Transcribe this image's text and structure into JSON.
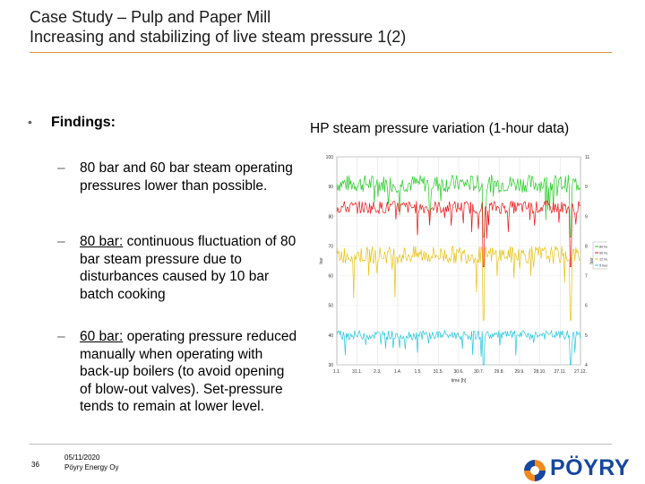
{
  "slide": {
    "title_line1": "Case Study – Pulp and Paper Mill",
    "title_line2": "Increasing and stabilizing of live steam pressure 1(2)",
    "accent_color": "#e08a40"
  },
  "findings": {
    "bullet": "•",
    "label": "Findings:",
    "items": [
      {
        "dash": "–",
        "text": "80 bar and 60 bar steam operating pressures lower than possible."
      },
      {
        "dash": "–",
        "lead": "80 bar:",
        "text": " continuous fluctuation of 80 bar steam pressure due to disturbances caused by 10 bar batch cooking"
      },
      {
        "dash": "–",
        "lead": "60 bar:",
        "text": " operating pressure reduced manually when operating with back-up boilers (to avoid opening of blow-out valves). Set-pressure tends to remain at lower level."
      }
    ]
  },
  "chart_title": "HP steam pressure variation (1-hour data)",
  "chart_data": {
    "type": "line",
    "xlabel": "time [h]",
    "ylabel_left": "bar",
    "ylabel_right": "bar",
    "yleft_ticks": [
      "100",
      "90",
      "80",
      "70",
      "60",
      "50",
      "40",
      "30"
    ],
    "yright_ticks": [
      "11",
      "9",
      "9",
      "8",
      "7",
      "6",
      "5",
      "4"
    ],
    "x_ticks": [
      "1.1.",
      "31.1.",
      "2.3.",
      "1.4.",
      "1.5.",
      "31.5.",
      "30.6.",
      "30.7.",
      "29.8.",
      "29.9.",
      "28.10.",
      "27.11.",
      "27.12."
    ],
    "ylim": [
      30,
      100
    ],
    "series": [
      {
        "name": "80 header",
        "color": "#22cc22",
        "level": 91,
        "noise": 3
      },
      {
        "name": "60 header",
        "color": "#ee1111",
        "level": 83,
        "noise": 2.2
      },
      {
        "name": "12 header",
        "color": "#e8c010",
        "level": 67,
        "noise": 3
      },
      {
        "name": "5 header",
        "color": "#22c8e0",
        "level": 40,
        "noise": 1.6
      }
    ]
  },
  "footer": {
    "page_number": "36",
    "date": "05/11/2020",
    "company": "Pöyry Energy Oy",
    "logo_text": "PÖYRY"
  }
}
